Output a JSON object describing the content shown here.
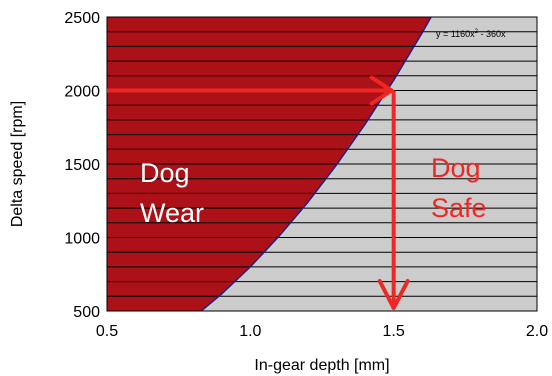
{
  "chart_data": {
    "type": "area",
    "xlabel": "In-gear depth [mm]",
    "ylabel": "Delta speed [rpm]",
    "xlim": [
      0.5,
      2.0
    ],
    "ylim": [
      500,
      2500
    ],
    "x_ticks": [
      "0.5",
      "1.0",
      "1.5",
      "2.0"
    ],
    "y_ticks": [
      "500",
      "1000",
      "1500",
      "2000",
      "2500"
    ],
    "grid": "horizontal",
    "curve_equation": {
      "text": "y = 1160x",
      "sup": "2",
      "rest": " - 360x"
    },
    "curve_coefficients": {
      "a": 1160,
      "b": -360
    },
    "curve_points": [
      {
        "x": 0.8,
        "y": 454
      },
      {
        "x": 0.9,
        "y": 616
      },
      {
        "x": 1.0,
        "y": 800
      },
      {
        "x": 1.1,
        "y": 1008
      },
      {
        "x": 1.2,
        "y": 1238
      },
      {
        "x": 1.3,
        "y": 1492
      },
      {
        "x": 1.4,
        "y": 1770
      },
      {
        "x": 1.5,
        "y": 2070
      },
      {
        "x": 1.6,
        "y": 2394
      },
      {
        "x": 1.7,
        "y": 2740
      }
    ],
    "regions": [
      {
        "label_line1": "Dog",
        "label_line2": "Wear",
        "color": "#ab1117",
        "text_color": "#ffffff"
      },
      {
        "label_line1": "Dog",
        "label_line2": "Safe",
        "color": "#cccccc",
        "text_color": "#ee2724"
      }
    ],
    "highlight": {
      "x": 1.5,
      "x_label": "1.5",
      "y": 2000,
      "y_label": "2000",
      "color": "#ee2724"
    },
    "curve_color": "#1f1f8c"
  }
}
